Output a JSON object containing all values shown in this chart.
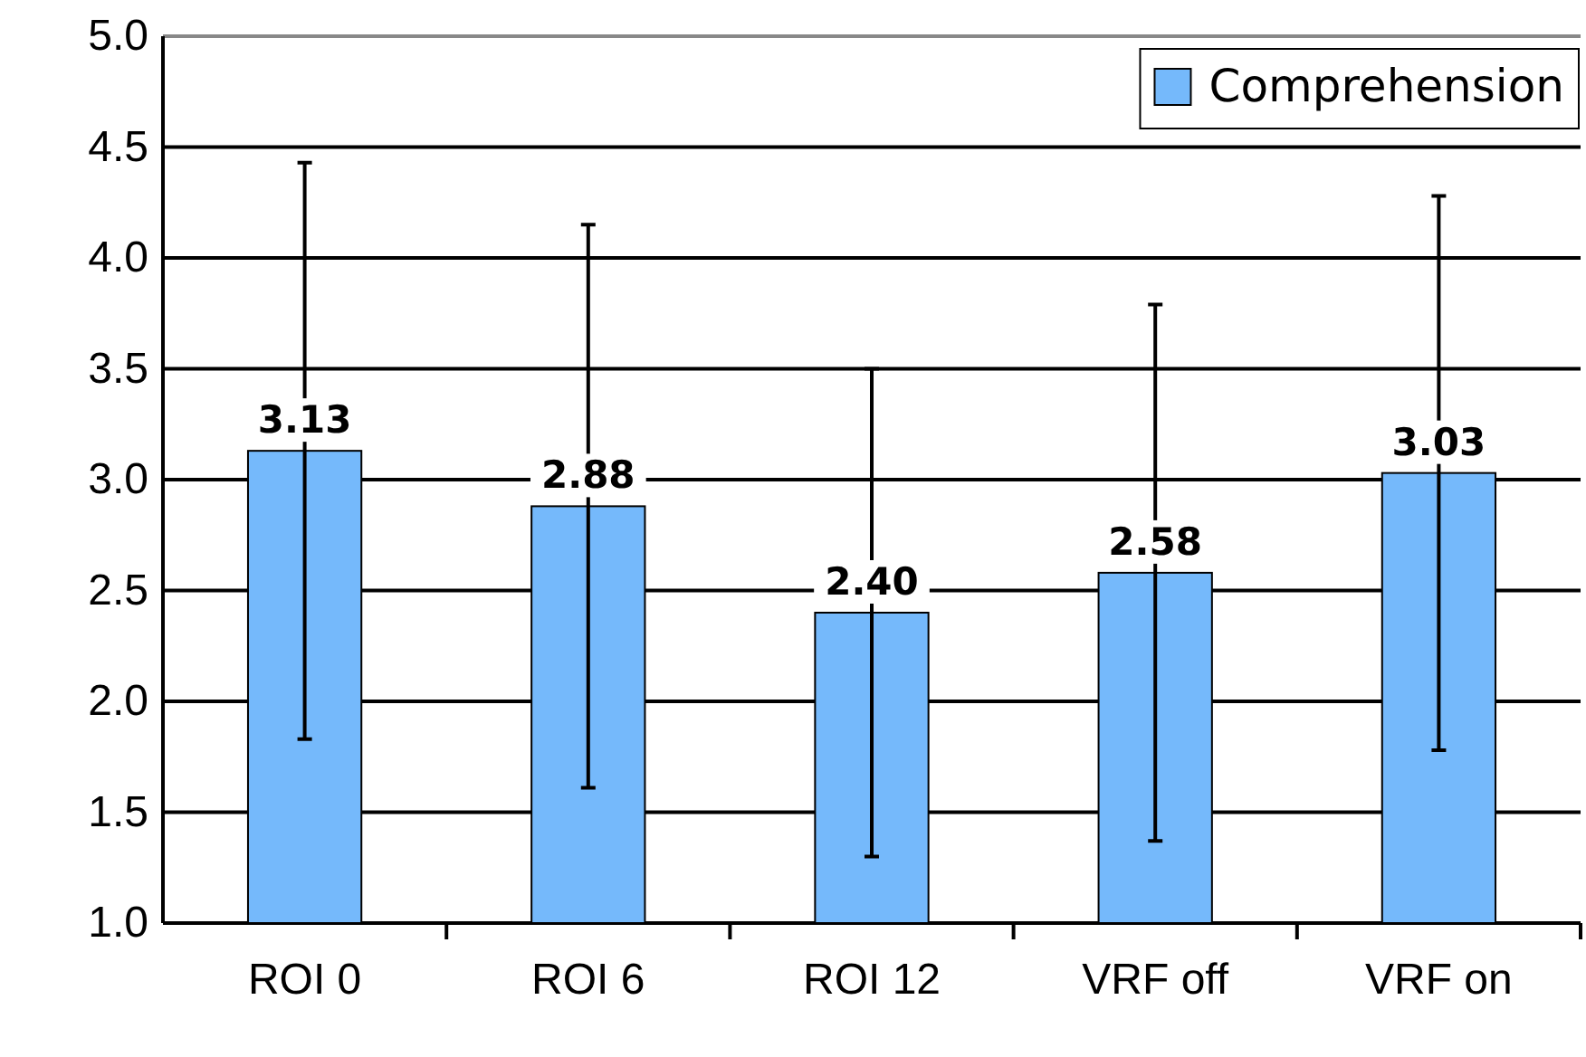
{
  "chart_data": {
    "type": "bar",
    "categories": [
      "ROI 0",
      "ROI 6",
      "ROI 12",
      "VRF off",
      "VRF on"
    ],
    "series": [
      {
        "name": "Comprehension",
        "color": "#75b9fb",
        "values": [
          3.13,
          2.88,
          2.4,
          2.58,
          3.03
        ],
        "errors": [
          1.3,
          1.27,
          1.1,
          1.21,
          1.25
        ],
        "value_labels": [
          "3.13",
          "2.88",
          "2.40",
          "2.58",
          "3.03"
        ]
      }
    ],
    "ylim": [
      1.0,
      5.0
    ],
    "yticks": [
      {
        "value": 1,
        "label": "1.0"
      },
      {
        "value": 1.5,
        "label": "1.5"
      },
      {
        "value": 2,
        "label": "2.0"
      },
      {
        "value": 2.5,
        "label": "2.5"
      },
      {
        "value": 3,
        "label": "3.0"
      },
      {
        "value": 3.5,
        "label": "3.5"
      },
      {
        "value": 4,
        "label": "4.0"
      },
      {
        "value": 4.5,
        "label": "4.5"
      },
      {
        "value": 5,
        "label": "5.0"
      }
    ],
    "grid": "y",
    "legend": "top right"
  }
}
